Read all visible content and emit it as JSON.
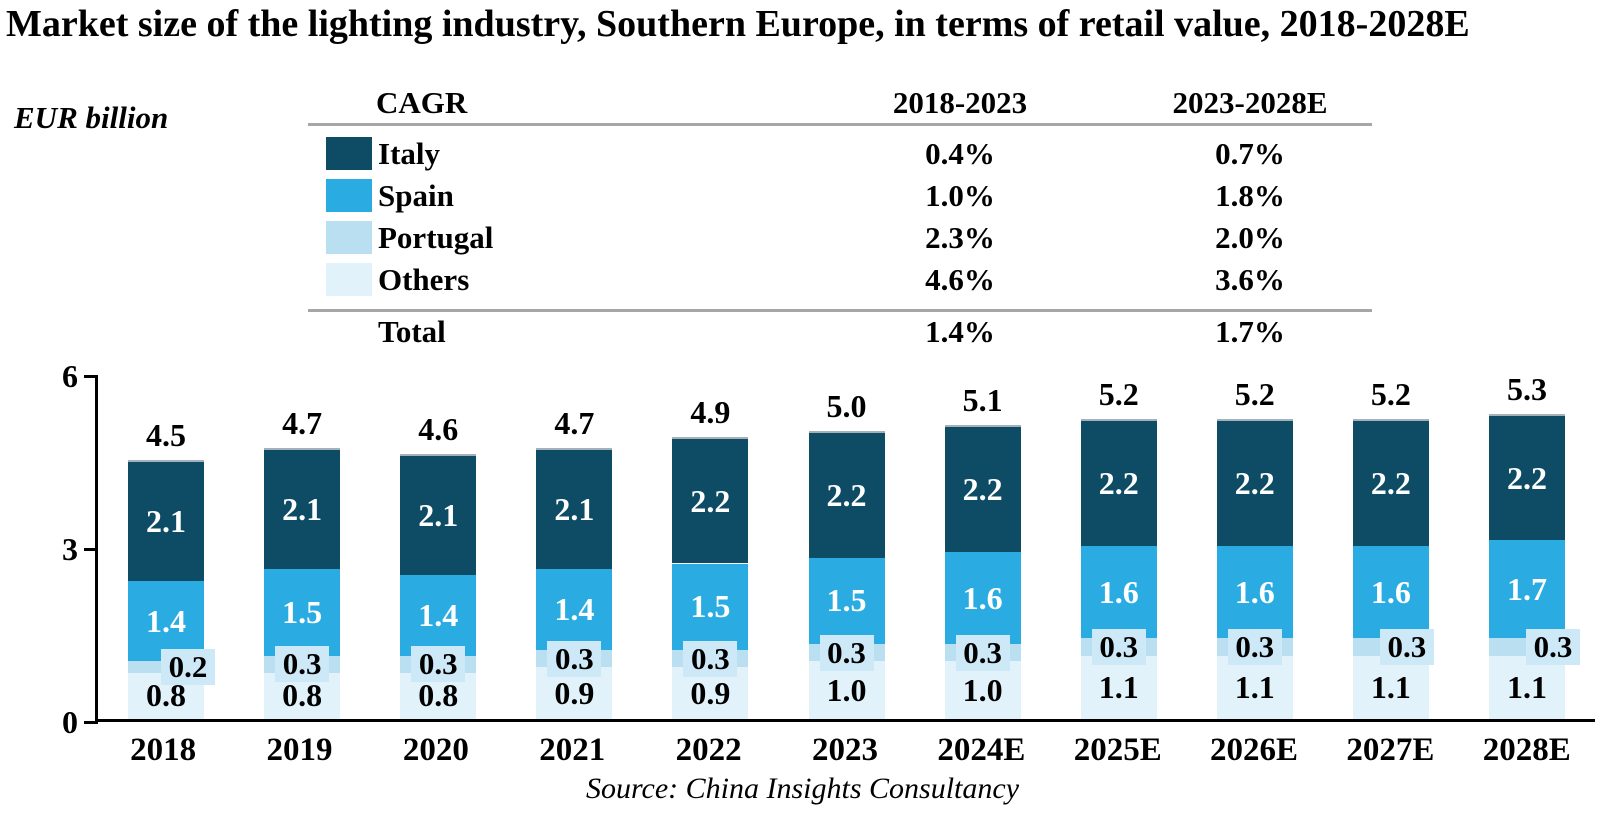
{
  "title": "Market size of the lighting industry, Southern Europe, in terms of retail value, 2018-2028E",
  "unit_label": "EUR billion",
  "source": "Source: China Insights Consultancy",
  "colors": {
    "italy": "#0e4b64",
    "spain": "#2aace2",
    "portugal": "#b9dff1",
    "others": "#e2f2fb",
    "portugal_label_box": "#cde8f6",
    "axis": "#000000",
    "table_rule": "#a6a6a6"
  },
  "cagr_table": {
    "header": {
      "label": "CAGR",
      "col1": "2018-2023",
      "col2": "2023-2028E"
    },
    "rows": [
      {
        "label": "Italy",
        "col1": "0.4%",
        "col2": "0.7%",
        "color": "#0e4b64"
      },
      {
        "label": "Spain",
        "col1": "1.0%",
        "col2": "1.8%",
        "color": "#2aace2"
      },
      {
        "label": "Portugal",
        "col1": "2.3%",
        "col2": "2.0%",
        "color": "#b9dff1"
      },
      {
        "label": "Others",
        "col1": "4.6%",
        "col2": "3.6%",
        "color": "#e2f2fb"
      }
    ],
    "total": {
      "label": "Total",
      "col1": "1.4%",
      "col2": "1.7%"
    }
  },
  "chart_data": {
    "type": "bar",
    "stacked": true,
    "title": "Market size of the lighting industry, Southern Europe, in terms of retail value, 2018-2028E",
    "ylabel": "EUR billion",
    "categories": [
      "2018",
      "2019",
      "2020",
      "2021",
      "2022",
      "2023",
      "2024E",
      "2025E",
      "2026E",
      "2027E",
      "2028E"
    ],
    "series": [
      {
        "name": "Others",
        "color": "#e2f2fb",
        "values": [
          0.8,
          0.8,
          0.8,
          0.9,
          0.9,
          1.0,
          1.0,
          1.1,
          1.1,
          1.1,
          1.1
        ]
      },
      {
        "name": "Portugal",
        "color": "#b9dff1",
        "values": [
          0.2,
          0.3,
          0.3,
          0.3,
          0.3,
          0.3,
          0.3,
          0.3,
          0.3,
          0.3,
          0.3
        ]
      },
      {
        "name": "Spain",
        "color": "#2aace2",
        "values": [
          1.4,
          1.5,
          1.4,
          1.4,
          1.5,
          1.5,
          1.6,
          1.6,
          1.6,
          1.6,
          1.7
        ]
      },
      {
        "name": "Italy",
        "color": "#0e4b64",
        "values": [
          2.1,
          2.1,
          2.1,
          2.1,
          2.2,
          2.2,
          2.2,
          2.2,
          2.2,
          2.2,
          2.2
        ]
      }
    ],
    "totals": [
      4.5,
      4.7,
      4.6,
      4.7,
      4.9,
      5.0,
      5.1,
      5.2,
      5.2,
      5.2,
      5.3
    ],
    "ylim": [
      0,
      6
    ],
    "yticks": [
      0,
      3,
      6
    ],
    "grid": false,
    "legend_position": "top-table"
  }
}
